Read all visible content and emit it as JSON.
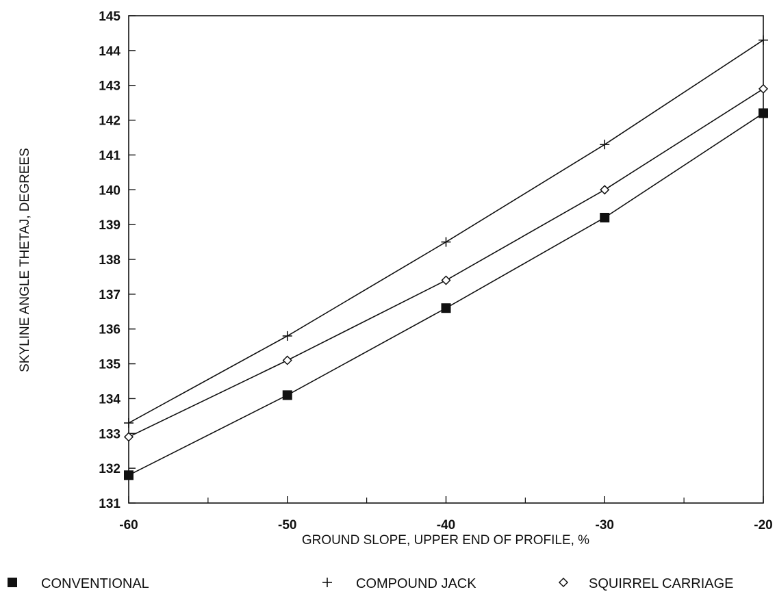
{
  "chart_data": {
    "type": "line",
    "xlabel": "GROUND SLOPE, UPPER END OF PROFILE, %",
    "ylabel": "SKYLINE ANGLE THETAJ, DEGREES",
    "xlim": [
      -60,
      -20
    ],
    "ylim": [
      131,
      145
    ],
    "x_ticks": [
      -60,
      -50,
      -40,
      -30,
      -20
    ],
    "y_ticks": [
      131,
      132,
      133,
      134,
      135,
      136,
      137,
      138,
      139,
      140,
      141,
      142,
      143,
      144,
      145
    ],
    "x_tick_labels": [
      "-60",
      "-50",
      "-40",
      "-30",
      "-20"
    ],
    "y_tick_labels": [
      "131",
      "132",
      "133",
      "134",
      "135",
      "136",
      "137",
      "138",
      "139",
      "140",
      "141",
      "142",
      "143",
      "144",
      "145"
    ],
    "grid": false,
    "legend_position": "bottom",
    "x": [
      -60,
      -50,
      -40,
      -30,
      -20
    ],
    "series": [
      {
        "name": "CONVENTIONAL",
        "marker": "filled-square",
        "values": [
          131.8,
          134.1,
          136.6,
          139.2,
          142.2
        ]
      },
      {
        "name": "COMPOUND JACK",
        "marker": "plus",
        "values": [
          133.3,
          135.8,
          138.5,
          141.3,
          144.3
        ]
      },
      {
        "name": "SQUIRREL CARRIAGE",
        "marker": "open-diamond",
        "values": [
          132.9,
          135.1,
          137.4,
          140.0,
          142.9
        ]
      }
    ],
    "colors": {
      "line": "#111111",
      "marker": "#111111"
    }
  }
}
